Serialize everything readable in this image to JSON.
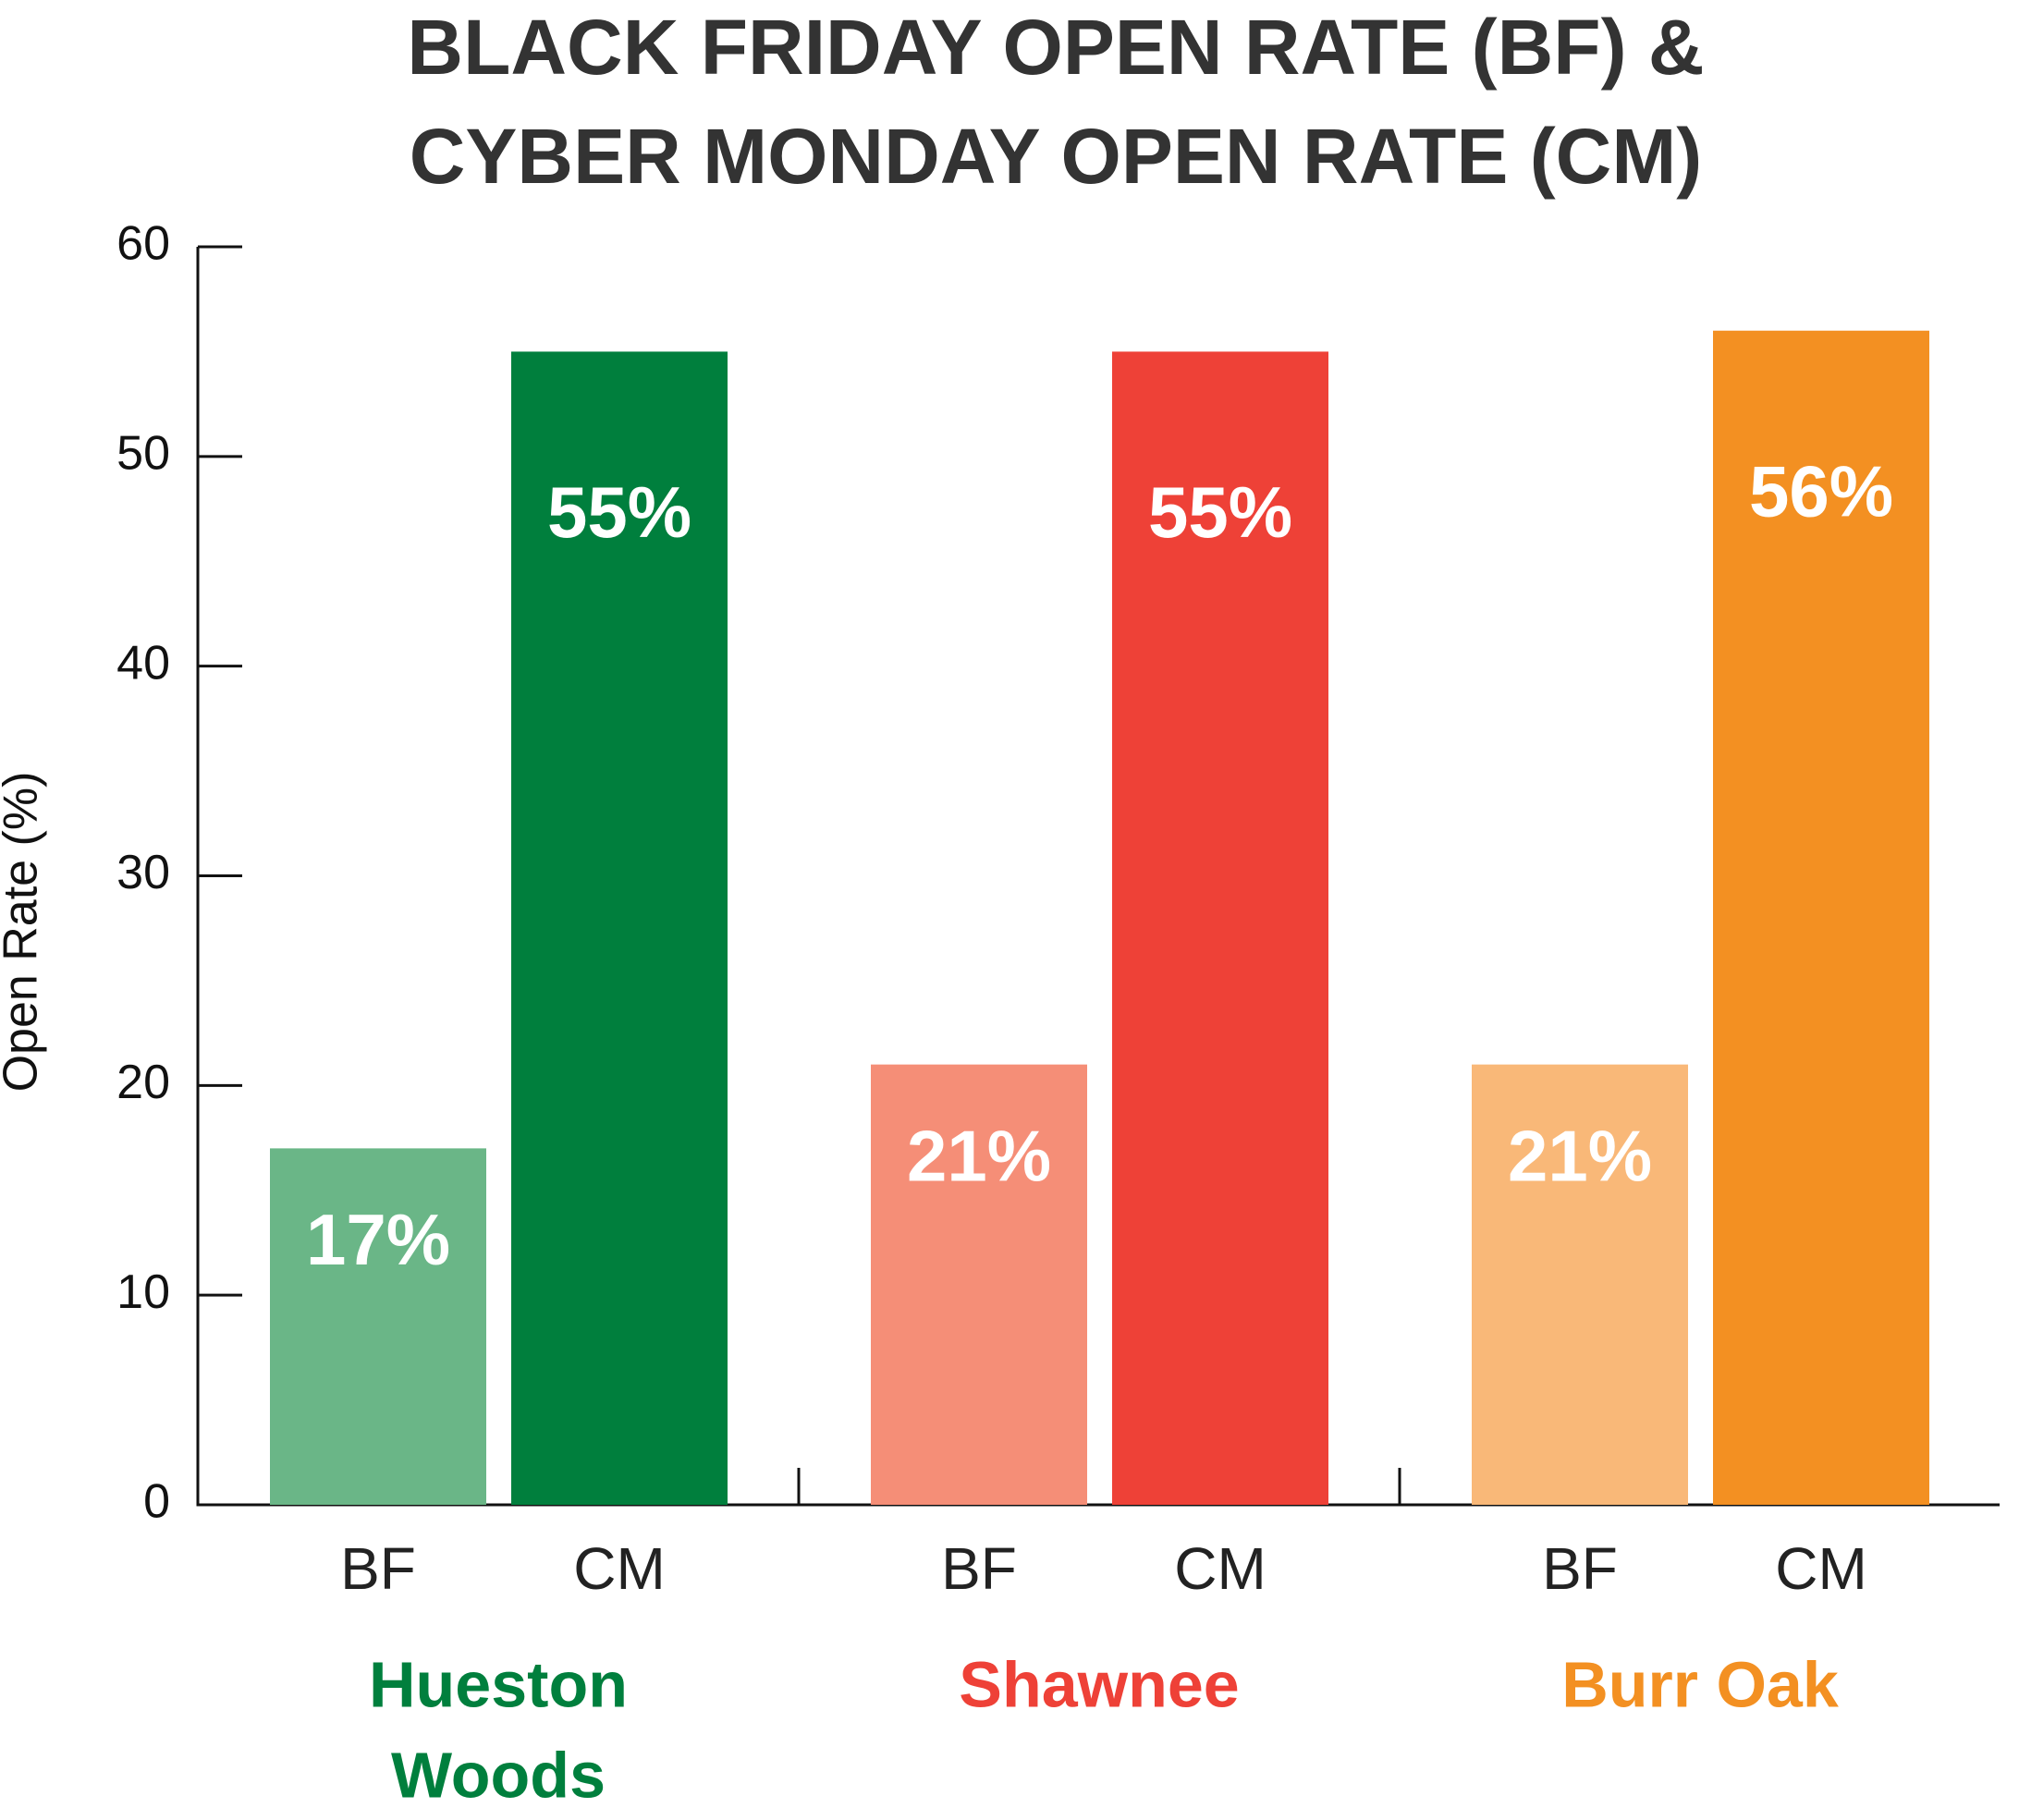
{
  "chart_data": {
    "type": "grouped_bar",
    "title": [
      "BLACK FRIDAY OPEN RATE (BF) &",
      "CYBER MONDAY OPEN RATE (CM)"
    ],
    "y_label": "Open Rate (%)",
    "ylim": [
      0,
      60
    ],
    "yticks": [
      0,
      10,
      20,
      30,
      40,
      50,
      60
    ],
    "groups": [
      {
        "name": [
          "Hueston",
          "Woods"
        ],
        "color": "#007f3d",
        "categories": [
          "BF",
          "CM"
        ],
        "values": [
          17,
          55
        ],
        "value_labels": [
          "17%",
          "55%"
        ],
        "colors": [
          "#6ab687",
          "#007f3d"
        ]
      },
      {
        "name": [
          "Shawnee"
        ],
        "color": "#ee4137",
        "categories": [
          "BF",
          "CM"
        ],
        "values": [
          21,
          55
        ],
        "value_labels": [
          "21%",
          "55%"
        ],
        "colors": [
          "#f58e77",
          "#ee4137"
        ]
      },
      {
        "name": [
          "Burr Oak"
        ],
        "color": "#f39022",
        "categories": [
          "BF",
          "CM"
        ],
        "values": [
          21,
          56
        ],
        "value_labels": [
          "21%",
          "56%"
        ],
        "colors": [
          "#f9b878",
          "#f39022"
        ]
      }
    ]
  }
}
